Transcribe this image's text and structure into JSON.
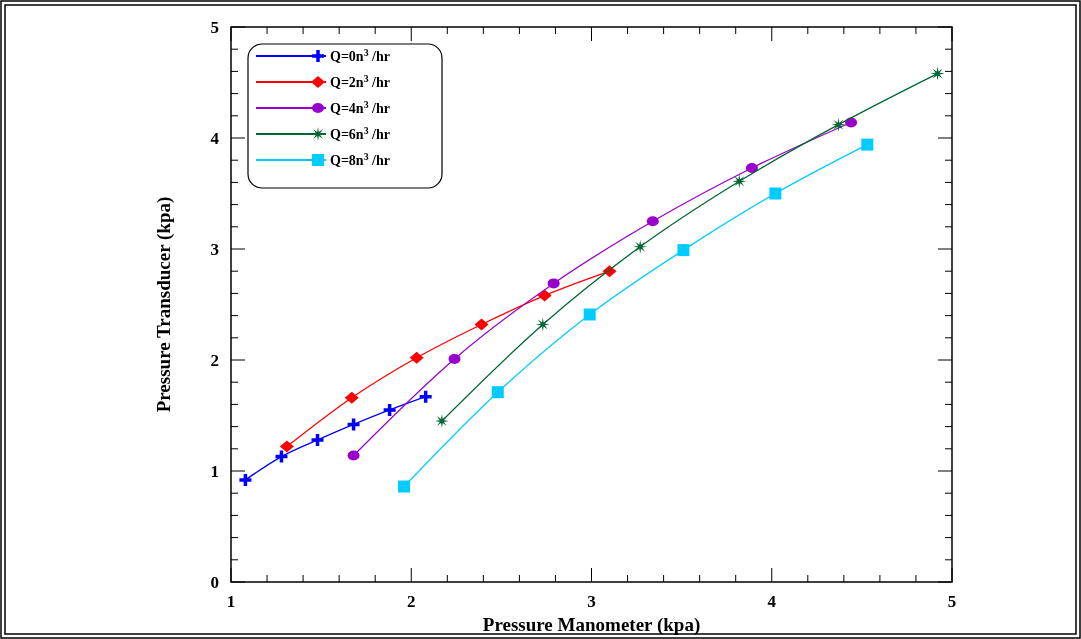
{
  "chart_data": {
    "type": "line",
    "xlabel": "Pressure Manometer (kpa)",
    "ylabel": "Pressure Transducer (kpa)",
    "xlim": [
      1,
      5
    ],
    "ylim": [
      0,
      5
    ],
    "xticks": [
      1,
      {
        "value": 1.2,
        "label": null
      },
      {
        "value": 1.4,
        "label": null
      },
      {
        "value": 1.6,
        "label": null
      },
      {
        "value": 1.8,
        "label": null
      },
      2,
      {
        "value": 2.2,
        "label": null
      },
      {
        "value": 2.4,
        "label": null
      },
      {
        "value": 2.6,
        "label": null
      },
      {
        "value": 2.8,
        "label": null
      },
      3,
      {
        "value": 3.2,
        "label": null
      },
      {
        "value": 3.4,
        "label": null
      },
      {
        "value": 3.6,
        "label": null
      },
      {
        "value": 3.8,
        "label": null
      },
      4,
      {
        "value": 4.2,
        "label": null
      },
      {
        "value": 4.4,
        "label": null
      },
      {
        "value": 4.6,
        "label": null
      },
      {
        "value": 4.8,
        "label": null
      },
      5
    ],
    "yticks": [
      0,
      {
        "value": 0.2,
        "label": null
      },
      {
        "value": 0.4,
        "label": null
      },
      {
        "value": 0.6,
        "label": null
      },
      {
        "value": 0.8,
        "label": null
      },
      1,
      {
        "value": 1.2,
        "label": null
      },
      {
        "value": 1.4,
        "label": null
      },
      {
        "value": 1.6,
        "label": null
      },
      {
        "value": 1.8,
        "label": null
      },
      2,
      {
        "value": 2.2,
        "label": null
      },
      {
        "value": 2.4,
        "label": null
      },
      {
        "value": 2.6,
        "label": null
      },
      {
        "value": 2.8,
        "label": null
      },
      3,
      {
        "value": 3.2,
        "label": null
      },
      {
        "value": 3.4,
        "label": null
      },
      {
        "value": 3.6,
        "label": null
      },
      {
        "value": 3.8,
        "label": null
      },
      4,
      {
        "value": 4.2,
        "label": null
      },
      {
        "value": 4.4,
        "label": null
      },
      {
        "value": 4.6,
        "label": null
      },
      {
        "value": 4.8,
        "label": null
      },
      5
    ],
    "grid": false,
    "legend": "top left",
    "line_style": "solid",
    "series": [
      {
        "name": "Q=0n$^{3}$ /hr",
        "color": "#0000ff",
        "marker": "cross",
        "x": [
          1.08,
          1.28,
          1.48,
          1.68,
          1.88,
          2.08
        ],
        "values": [
          0.92,
          1.13,
          1.28,
          1.42,
          1.55,
          1.67
        ]
      },
      {
        "name": "Q=2n$^{3}$ /hr",
        "color": "#ff0000",
        "marker": "diamond",
        "x": [
          1.31,
          1.67,
          2.03,
          2.39,
          2.74,
          3.1
        ],
        "values": [
          1.22,
          1.66,
          2.02,
          2.32,
          2.58,
          2.8
        ]
      },
      {
        "name": "Q=4n$^{3}$ /hr",
        "color": "#9900cc",
        "marker": "circle",
        "x": [
          1.68,
          2.24,
          2.79,
          3.34,
          3.89,
          4.44
        ],
        "values": [
          1.14,
          2.01,
          2.69,
          3.25,
          3.73,
          4.14
        ]
      },
      {
        "name": "Q=6n$^{3}$ /hr",
        "color": "#006633",
        "marker": "star",
        "x": [
          2.17,
          2.73,
          3.27,
          3.82,
          4.37,
          4.92
        ],
        "values": [
          1.45,
          2.32,
          3.02,
          3.61,
          4.12,
          4.58
        ]
      },
      {
        "name": "Q=8n$^{3}$ /hr",
        "color": "#00ccff",
        "marker": "square",
        "x": [
          1.96,
          2.48,
          2.99,
          3.51,
          4.02,
          4.53
        ],
        "values": [
          0.86,
          1.71,
          2.41,
          2.99,
          3.5,
          3.94
        ]
      }
    ]
  }
}
